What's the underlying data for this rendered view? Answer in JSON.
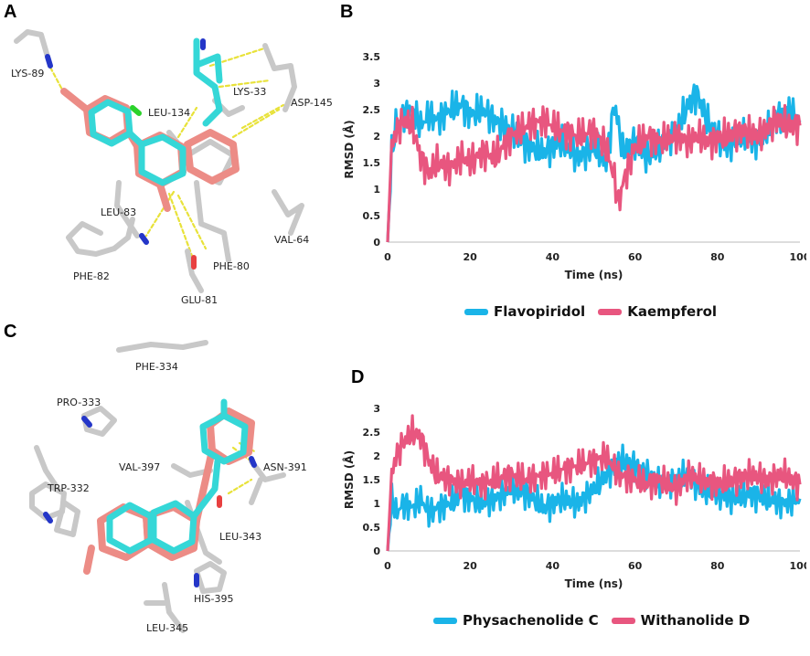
{
  "panels": {
    "a": "A",
    "b": "B",
    "c": "C",
    "d": "D"
  },
  "molA_labels": {
    "lys89": "LYS-89",
    "leu134": "LEU-134",
    "lys33": "LYS-33",
    "asp145": "ASP-145",
    "leu83": "LEU-83",
    "val64": "VAL-64",
    "phe80": "PHE-80",
    "phe82": "PHE-82",
    "glu81": "GLU-81"
  },
  "molC_labels": {
    "phe334": "PHE-334",
    "pro333": "PRO-333",
    "val397": "VAL-397",
    "asn391": "ASN-391",
    "trp332": "TRP-332",
    "leu343": "LEU-343",
    "his395": "HIS-395",
    "leu345": "LEU-345"
  },
  "colors": {
    "cyan": "#1ab4e8",
    "pink": "#e8567f",
    "ligandCyan": "#35d7d7",
    "ligandPink": "#ec8c86",
    "residue": "#c8c8c8"
  },
  "chart_data": [
    {
      "type": "line",
      "xlabel": "Time (ns)",
      "ylabel": "RMSD (Å)",
      "xlim": [
        0,
        100
      ],
      "ylim": [
        0,
        3.5
      ],
      "xticks": [
        "0",
        "20",
        "40",
        "60",
        "80",
        "100"
      ],
      "yticks": [
        "0",
        "0.5",
        "1",
        "1.5",
        "2",
        "2.5",
        "3",
        "3.5"
      ],
      "legend_position": "bottom",
      "series": [
        {
          "name": "Flavopiridol",
          "x": [
            0,
            1,
            2,
            4,
            6,
            8,
            10,
            12,
            15,
            18,
            20,
            23,
            26,
            30,
            34,
            38,
            42,
            46,
            50,
            53,
            55,
            56,
            57,
            60,
            63,
            66,
            70,
            73,
            75,
            78,
            82,
            86,
            90,
            94,
            97,
            100
          ],
          "y": [
            0,
            1.7,
            2.2,
            2.4,
            2.5,
            2.2,
            2.4,
            2.3,
            2.5,
            2.6,
            2.4,
            2.5,
            2.3,
            2.1,
            1.8,
            1.7,
            1.9,
            1.6,
            1.8,
            1.5,
            2.6,
            2.2,
            1.7,
            1.9,
            1.6,
            1.8,
            2.1,
            2.6,
            2.8,
            2.2,
            1.8,
            2.0,
            1.9,
            2.3,
            2.5,
            2.3
          ]
        },
        {
          "name": "Kaempferol",
          "x": [
            0,
            1,
            2,
            4,
            6,
            8,
            10,
            12,
            15,
            18,
            20,
            23,
            26,
            30,
            34,
            38,
            42,
            46,
            50,
            53,
            55,
            56,
            57,
            60,
            63,
            66,
            70,
            73,
            75,
            78,
            82,
            86,
            90,
            94,
            97,
            100
          ],
          "y": [
            0,
            1.8,
            2.1,
            2.3,
            2.2,
            1.6,
            1.3,
            1.5,
            1.4,
            1.6,
            1.5,
            1.7,
            1.6,
            2.0,
            2.2,
            2.3,
            2.1,
            2.0,
            2.1,
            1.8,
            1.2,
            0.7,
            1.1,
            1.8,
            2.0,
            1.9,
            2.0,
            1.9,
            2.0,
            1.9,
            2.0,
            2.1,
            2.0,
            2.3,
            2.2,
            2.2
          ]
        }
      ]
    },
    {
      "type": "line",
      "xlabel": "Time (ns)",
      "ylabel": "RMSD (Å)",
      "xlim": [
        0,
        100
      ],
      "ylim": [
        0,
        3
      ],
      "xticks": [
        "0",
        "20",
        "40",
        "60",
        "80",
        "100"
      ],
      "yticks": [
        "0",
        "0.5",
        "1",
        "1.5",
        "2",
        "2.5",
        "3"
      ],
      "legend_position": "bottom",
      "series": [
        {
          "name": "Physachenolide C",
          "x": [
            0,
            1,
            2,
            4,
            6,
            8,
            10,
            12,
            15,
            18,
            20,
            23,
            26,
            30,
            34,
            38,
            42,
            46,
            50,
            53,
            56,
            60,
            63,
            66,
            70,
            73,
            76,
            80,
            84,
            88,
            92,
            96,
            100
          ],
          "y": [
            0,
            1.1,
            0.8,
            1.0,
            0.9,
            1.1,
            0.8,
            0.9,
            1.0,
            1.2,
            1.1,
            1.0,
            1.1,
            1.3,
            1.2,
            0.9,
            1.1,
            1.0,
            1.3,
            1.6,
            1.9,
            1.8,
            1.6,
            1.4,
            1.5,
            1.6,
            1.3,
            1.2,
            1.1,
            1.2,
            1.1,
            1.0,
            1.1
          ]
        },
        {
          "name": "Withanolide D",
          "x": [
            0,
            1,
            2,
            4,
            6,
            8,
            10,
            12,
            15,
            18,
            20,
            23,
            26,
            30,
            34,
            38,
            42,
            46,
            50,
            53,
            56,
            60,
            63,
            66,
            70,
            73,
            76,
            80,
            84,
            88,
            92,
            96,
            100
          ],
          "y": [
            0,
            1.6,
            2.0,
            2.3,
            2.5,
            2.4,
            1.9,
            1.6,
            1.5,
            1.4,
            1.5,
            1.4,
            1.5,
            1.6,
            1.5,
            1.6,
            1.7,
            1.8,
            1.9,
            2.0,
            1.6,
            1.5,
            1.4,
            1.5,
            1.3,
            1.6,
            1.5,
            1.4,
            1.5,
            1.6,
            1.5,
            1.6,
            1.4
          ]
        }
      ]
    }
  ]
}
